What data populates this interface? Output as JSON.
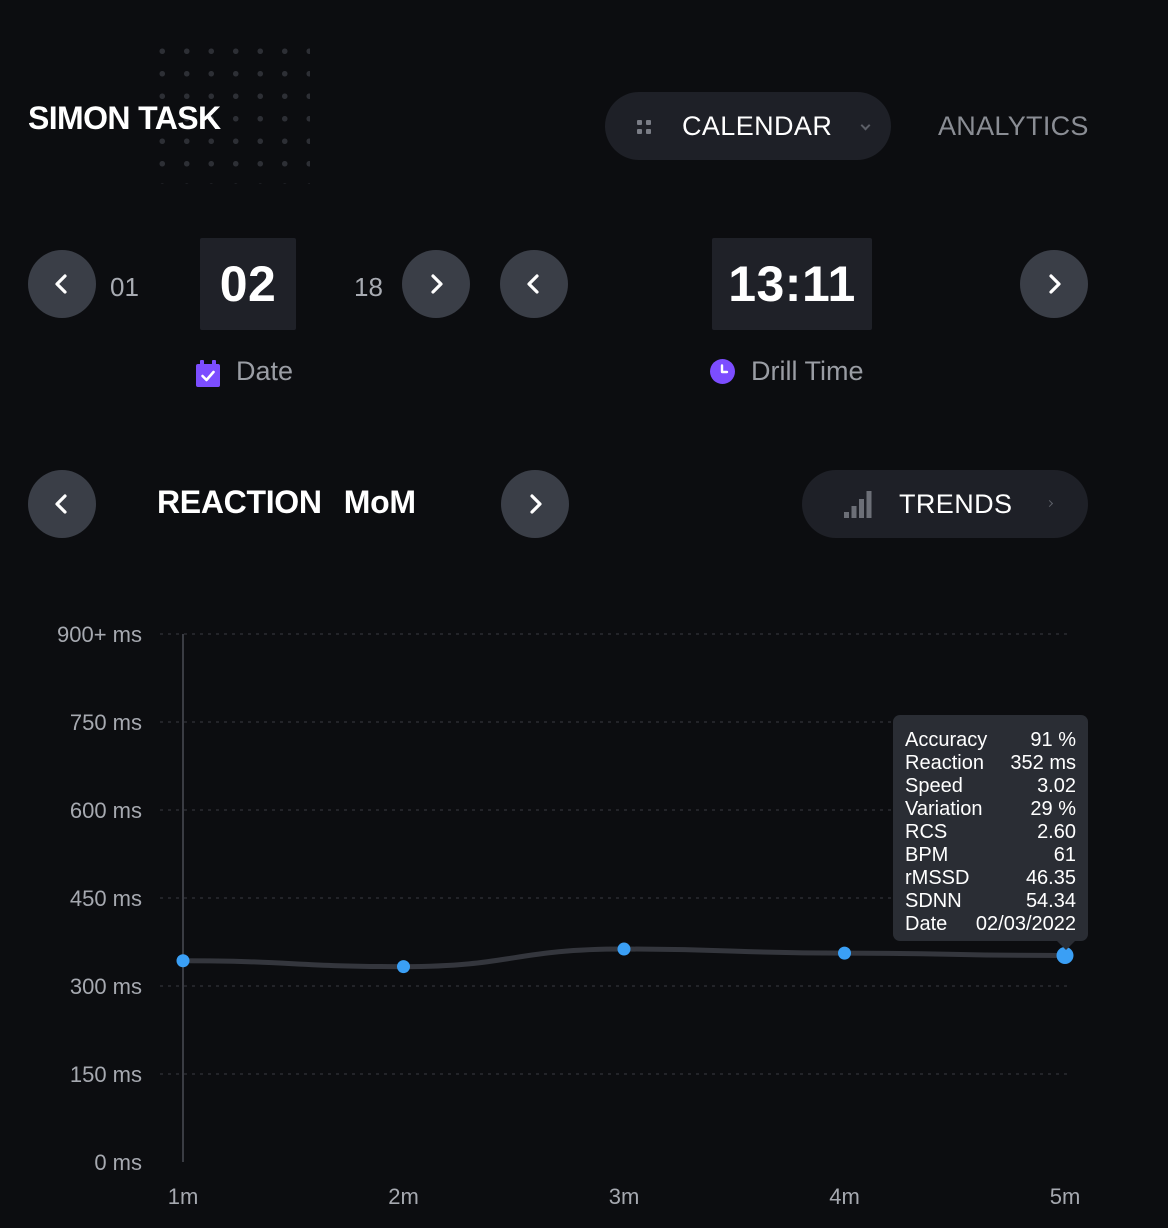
{
  "header": {
    "app_title": "SIMON TASK",
    "tabs": [
      {
        "label": "CALENDAR",
        "icon": "grid-icon",
        "active": true
      },
      {
        "label": "ANALYTICS",
        "active": false
      }
    ]
  },
  "date_picker": {
    "prev_value": "01",
    "current_value": "02",
    "next_value": "18",
    "caption": "Date",
    "icon": "calendar-check-icon"
  },
  "time_picker": {
    "current_value": "13:11",
    "caption": "Drill Time",
    "icon": "clock-icon"
  },
  "metric_selector": {
    "metric": "REACTION",
    "period": "MoM"
  },
  "trends_button": {
    "label": "TRENDS",
    "icon": "signal-bars-icon"
  },
  "colors": {
    "accent": "#3a9ff5",
    "icon_purple": "#7c4dff",
    "background": "#0c0d10",
    "pill": "#1e2027",
    "button": "#3a3e47"
  },
  "chart_data": {
    "type": "line",
    "categories": [
      "1m",
      "2m",
      "3m",
      "4m",
      "5m"
    ],
    "values": [
      343,
      333,
      363,
      356,
      352
    ],
    "y_tick_labels": [
      "0 ms",
      "150 ms",
      "300 ms",
      "450 ms",
      "600 ms",
      "750 ms",
      "900+ ms"
    ],
    "y_ticks": [
      0,
      150,
      300,
      450,
      600,
      750,
      900
    ],
    "ylim": [
      0,
      900
    ],
    "grid": true,
    "highlighted_index": 4
  },
  "tooltip": {
    "rows": [
      {
        "label": "Accuracy",
        "value": "91 %"
      },
      {
        "label": "Reaction",
        "value": "352 ms"
      },
      {
        "label": "Speed",
        "value": "3.02"
      },
      {
        "label": "Variation",
        "value": "29 %"
      },
      {
        "label": "RCS",
        "value": "2.60"
      },
      {
        "label": "BPM",
        "value": "61"
      },
      {
        "label": "rMSSD",
        "value": "46.35"
      },
      {
        "label": "SDNN",
        "value": "54.34"
      },
      {
        "label": "Date",
        "value": "02/03/2022"
      }
    ]
  }
}
